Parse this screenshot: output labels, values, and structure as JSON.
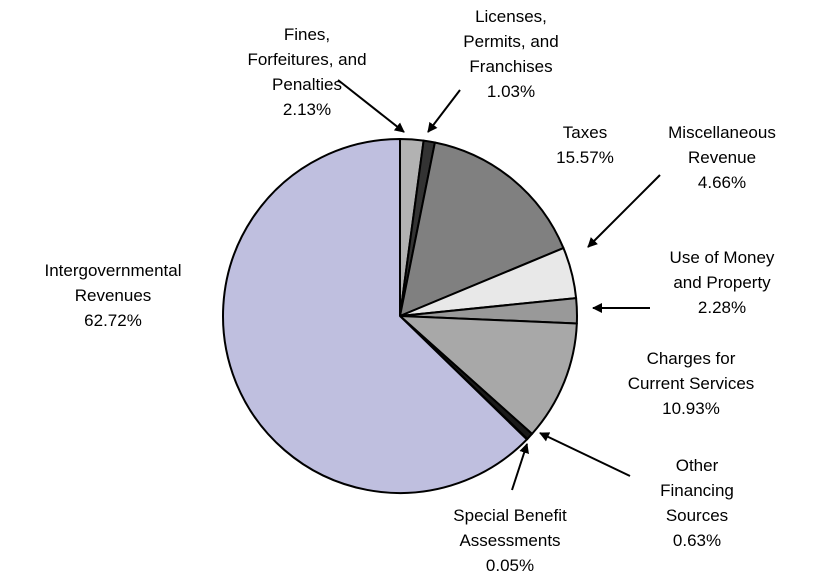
{
  "chart_data": {
    "type": "pie",
    "title": "",
    "slices": [
      {
        "label": [
          "Fines,",
          "Forfeitures, and",
          "Penalties"
        ],
        "percent_label": "2.13%",
        "value": 2.13,
        "color": "#b2b2b2"
      },
      {
        "label": [
          "Licenses,",
          "Permits, and",
          "Franchises"
        ],
        "percent_label": "1.03%",
        "value": 1.03,
        "color": "#333333"
      },
      {
        "label": [
          "Taxes"
        ],
        "percent_label": "15.57%",
        "value": 15.57,
        "color": "#808080"
      },
      {
        "label": [
          "Miscellaneous",
          "Revenue"
        ],
        "percent_label": "4.66%",
        "value": 4.66,
        "color": "#e8e8e8"
      },
      {
        "label": [
          "Use of Money",
          "and Property"
        ],
        "percent_label": "2.28%",
        "value": 2.28,
        "color": "#999999"
      },
      {
        "label": [
          "Charges for",
          "Current Services"
        ],
        "percent_label": "10.93%",
        "value": 10.93,
        "color": "#a8a8a8"
      },
      {
        "label": [
          "Other",
          "Financing",
          "Sources"
        ],
        "percent_label": "0.63%",
        "value": 0.63,
        "color": "#1a1a1a"
      },
      {
        "label": [
          "Special Benefit",
          "Assessments"
        ],
        "percent_label": "0.05%",
        "value": 0.05,
        "color": "#000000"
      },
      {
        "label": [
          "Intergovernmental",
          "Revenues"
        ],
        "percent_label": "62.72%",
        "value": 62.72,
        "color": "#bfbfdf"
      }
    ]
  }
}
